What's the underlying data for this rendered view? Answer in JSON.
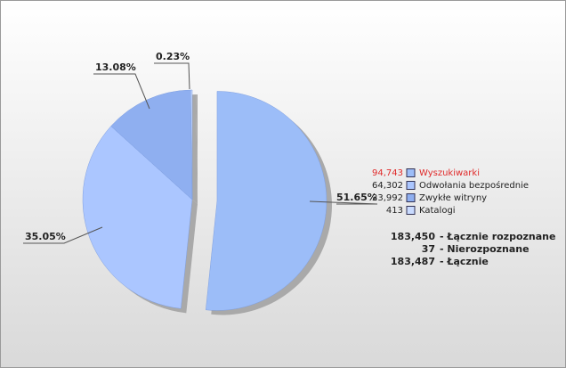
{
  "chart_data": {
    "type": "pie",
    "categories": [
      "Wyszukiwarki",
      "Odwołania bezpośrednie",
      "Zwykłe witryny",
      "Katalogi"
    ],
    "values": [
      51.65,
      35.05,
      13.08,
      0.23
    ],
    "value_labels": [
      "51.65%",
      "35.05%",
      "13.08%",
      "0.23%"
    ],
    "counts": [
      {
        "value": 94743,
        "label": "94,743"
      },
      {
        "value": 64302,
        "label": "64,302"
      },
      {
        "value": 23992,
        "label": "23,992"
      },
      {
        "value": 413,
        "label": "413"
      }
    ],
    "colors": [
      "#9cbdf8",
      "#abc6ff",
      "#8faff0",
      "#c9dbff"
    ],
    "highlight": 0,
    "totals": [
      {
        "value": 183450,
        "label": "183,450",
        "text": "- Łącznie rozpoznane"
      },
      {
        "value": 37,
        "label": "37",
        "text": "- Nierozpoznane"
      },
      {
        "value": 183487,
        "label": "183,487",
        "text": "- Łącznie"
      }
    ]
  }
}
